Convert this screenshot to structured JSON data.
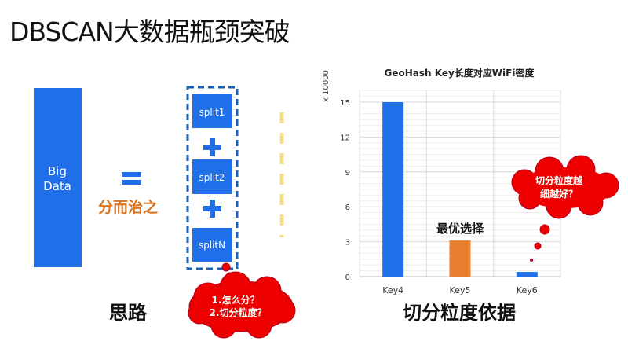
{
  "slide": {
    "title": "DBSCAN大数据瓶颈突破",
    "big_data_label_line1": "Big",
    "big_data_label_line2": "Data",
    "divide_conquer": "分而治之",
    "splits": [
      "split1",
      "split2",
      "splitN"
    ],
    "left_caption": "思路",
    "right_caption": "切分粒度依据",
    "left_bubble_line1": "1.怎么分？",
    "left_bubble_line2": "2.切分粒度？",
    "right_bubble_line1": "切分粒度越",
    "right_bubble_line2": "细越好？",
    "best_choice": "最优选择",
    "colors": {
      "blue": "#1f6fe8",
      "orange": "#e87f2e",
      "red": "#ee0000",
      "darkred": "#b0001a",
      "yellow": "#f6dc8c"
    }
  },
  "chart_data": {
    "type": "bar",
    "title": "GeoHash Key长度对应WiFi密度",
    "ylabel": "x 10000",
    "categories": [
      "Key4",
      "Key5",
      "Key6"
    ],
    "values": [
      15,
      3.1,
      0.4
    ],
    "bar_colors": [
      "#1f6fe8",
      "#e87f2e",
      "#1f6fe8"
    ],
    "ylim": [
      0,
      16
    ],
    "yticks": [
      0,
      3,
      6,
      9,
      12,
      15
    ],
    "grid": true
  }
}
